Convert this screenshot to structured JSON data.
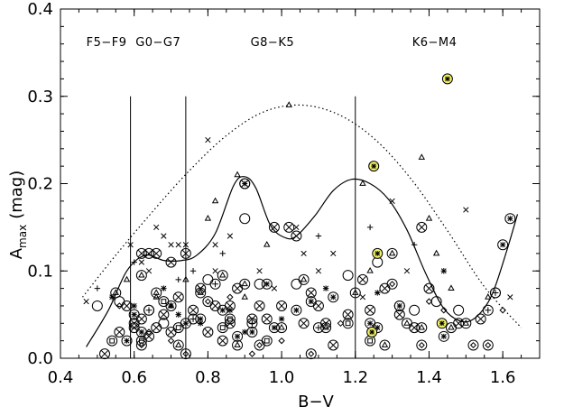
{
  "chart_data": {
    "type": "scatter",
    "title": "",
    "xlabel": "B−V",
    "ylabel_main": "A",
    "ylabel_sub": "max",
    "ylabel_unit": "(mag)",
    "xlim": [
      0.4,
      1.7
    ],
    "ylim": [
      0.0,
      0.4
    ],
    "xticks": [
      0.4,
      0.6,
      0.8,
      1.0,
      1.2,
      1.4,
      1.6
    ],
    "xtick_labels": [
      "0.4",
      "0.6",
      "0.8",
      "1.0",
      "1.2",
      "1.4",
      "1.6"
    ],
    "yticks": [
      0.0,
      0.1,
      0.2,
      0.3,
      0.4
    ],
    "ytick_labels": [
      "0.0",
      "0.1",
      "0.2",
      "0.3",
      "0.4"
    ],
    "grid": false,
    "class_boundaries": [
      0.59,
      0.74,
      1.2
    ],
    "boundary_top": 0.3,
    "spectral_classes": [
      {
        "label": "F5−F9",
        "x": 0.525
      },
      {
        "label": "G0−G7",
        "x": 0.665
      },
      {
        "label": "G8−K5",
        "x": 0.975
      },
      {
        "label": "K6−M4",
        "x": 1.415
      }
    ],
    "envelope_curve": {
      "style": "dotted",
      "x": [
        0.46,
        0.55,
        0.65,
        0.75,
        0.85,
        0.95,
        1.05,
        1.15,
        1.25,
        1.35,
        1.45,
        1.55,
        1.65
      ],
      "y": [
        0.07,
        0.118,
        0.168,
        0.215,
        0.255,
        0.282,
        0.29,
        0.28,
        0.252,
        0.206,
        0.146,
        0.082,
        0.035
      ]
    },
    "fit_curve": {
      "style": "solid",
      "x": [
        0.47,
        0.53,
        0.58,
        0.63,
        0.68,
        0.73,
        0.77,
        0.82,
        0.87,
        0.9,
        0.93,
        0.97,
        1.01,
        1.04,
        1.09,
        1.14,
        1.19,
        1.24,
        1.29,
        1.34,
        1.39,
        1.44,
        1.49,
        1.53,
        1.57,
        1.61,
        1.64
      ],
      "y": [
        0.013,
        0.055,
        0.1,
        0.118,
        0.112,
        0.112,
        0.118,
        0.143,
        0.198,
        0.208,
        0.195,
        0.152,
        0.138,
        0.14,
        0.163,
        0.192,
        0.205,
        0.2,
        0.182,
        0.147,
        0.098,
        0.057,
        0.042,
        0.048,
        0.072,
        0.122,
        0.165
      ]
    },
    "series": [
      {
        "marker": "circled-cross",
        "points": [
          [
            0.52,
            0.005
          ],
          [
            0.56,
            0.03
          ],
          [
            0.58,
            0.06
          ],
          [
            0.6,
            0.035
          ],
          [
            0.62,
            0.045
          ],
          [
            0.64,
            0.025
          ],
          [
            0.66,
            0.035
          ],
          [
            0.68,
            0.05
          ],
          [
            0.7,
            0.03
          ],
          [
            0.72,
            0.07
          ],
          [
            0.74,
            0.12
          ],
          [
            0.76,
            0.055
          ],
          [
            0.78,
            0.08
          ],
          [
            0.8,
            0.03
          ],
          [
            0.82,
            0.06
          ],
          [
            0.84,
            0.02
          ],
          [
            0.86,
            0.04
          ],
          [
            0.88,
            0.08
          ],
          [
            0.9,
            0.2
          ],
          [
            0.92,
            0.045
          ],
          [
            0.96,
            0.045
          ],
          [
            0.98,
            0.15
          ],
          [
            1.0,
            0.06
          ],
          [
            1.02,
            0.15
          ],
          [
            1.04,
            0.14
          ],
          [
            1.06,
            0.04
          ],
          [
            1.1,
            0.06
          ],
          [
            1.12,
            0.04
          ],
          [
            1.14,
            0.015
          ],
          [
            1.18,
            0.05
          ],
          [
            1.22,
            0.09
          ],
          [
            1.24,
            0.055
          ],
          [
            1.28,
            0.08
          ],
          [
            1.32,
            0.05
          ],
          [
            1.36,
            0.035
          ],
          [
            1.38,
            0.15
          ],
          [
            1.4,
            0.08
          ],
          [
            1.48,
            0.04
          ],
          [
            1.54,
            0.045
          ],
          [
            0.62,
            0.12
          ],
          [
            0.64,
            0.12
          ],
          [
            0.66,
            0.12
          ],
          [
            0.6,
            0.04
          ],
          [
            0.7,
            0.11
          ],
          [
            0.86,
            0.06
          ],
          [
            0.94,
            0.06
          ],
          [
            1.08,
            0.075
          ]
        ]
      },
      {
        "marker": "circled-asterisk",
        "points": [
          [
            0.58,
            0.02
          ],
          [
            0.6,
            0.05
          ],
          [
            0.62,
            0.03
          ],
          [
            0.7,
            0.06
          ],
          [
            0.74,
            0.04
          ],
          [
            0.78,
            0.045
          ],
          [
            0.84,
            0.055
          ],
          [
            0.88,
            0.025
          ],
          [
            0.92,
            0.03
          ],
          [
            0.98,
            0.035
          ],
          [
            1.04,
            0.055
          ],
          [
            1.14,
            0.07
          ],
          [
            1.26,
            0.035
          ],
          [
            1.32,
            0.06
          ],
          [
            1.44,
            0.025
          ],
          [
            1.6,
            0.13
          ],
          [
            1.62,
            0.16
          ],
          [
            0.9,
            0.2
          ],
          [
            0.96,
            0.085
          ],
          [
            1.08,
            0.065
          ],
          [
            1.24,
            0.04
          ]
        ]
      },
      {
        "marker": "circled-triangle",
        "points": [
          [
            0.55,
            0.075
          ],
          [
            0.62,
            0.095
          ],
          [
            0.66,
            0.075
          ],
          [
            0.72,
            0.015
          ],
          [
            0.78,
            0.075
          ],
          [
            0.84,
            0.095
          ],
          [
            0.88,
            0.015
          ],
          [
            1.0,
            0.035
          ],
          [
            1.12,
            0.035
          ],
          [
            1.28,
            0.015
          ],
          [
            1.3,
            0.12
          ],
          [
            1.34,
            0.04
          ],
          [
            1.38,
            0.035
          ],
          [
            1.46,
            0.035
          ],
          [
            1.5,
            0.04
          ],
          [
            0.9,
            0.085
          ],
          [
            1.2,
            0.075
          ],
          [
            1.06,
            0.09
          ]
        ]
      },
      {
        "marker": "circled-square",
        "points": [
          [
            0.54,
            0.02
          ],
          [
            0.62,
            0.02
          ],
          [
            0.72,
            0.035
          ],
          [
            0.86,
            0.045
          ],
          [
            0.96,
            0.02
          ],
          [
            1.18,
            0.04
          ],
          [
            1.24,
            0.02
          ],
          [
            0.68,
            0.065
          ],
          [
            0.84,
            0.035
          ]
        ]
      },
      {
        "marker": "circled-diamond",
        "points": [
          [
            0.62,
            0.015
          ],
          [
            0.74,
            0.005
          ],
          [
            0.8,
            0.065
          ],
          [
            0.94,
            0.015
          ],
          [
            1.08,
            0.005
          ],
          [
            1.3,
            0.085
          ],
          [
            1.38,
            0.015
          ],
          [
            1.52,
            0.015
          ],
          [
            1.56,
            0.015
          ]
        ]
      },
      {
        "marker": "circled-plus",
        "points": [
          [
            0.64,
            0.055
          ],
          [
            0.76,
            0.045
          ],
          [
            0.82,
            0.085
          ],
          [
            0.92,
            0.04
          ],
          [
            1.1,
            0.035
          ],
          [
            1.56,
            0.055
          ],
          [
            1.58,
            0.075
          ]
        ]
      },
      {
        "marker": "circle",
        "points": [
          [
            0.5,
            0.06
          ],
          [
            0.56,
            0.065
          ],
          [
            0.64,
            0.055
          ],
          [
            0.68,
            0.04
          ],
          [
            0.8,
            0.09
          ],
          [
            0.9,
            0.16
          ],
          [
            0.94,
            0.085
          ],
          [
            1.04,
            0.085
          ],
          [
            1.18,
            0.095
          ],
          [
            1.36,
            0.055
          ],
          [
            1.42,
            0.065
          ],
          [
            1.48,
            0.055
          ],
          [
            1.58,
            0.075
          ],
          [
            1.26,
            0.11
          ],
          [
            1.32,
            0.06
          ]
        ]
      },
      {
        "marker": "cross",
        "points": [
          [
            0.47,
            0.065
          ],
          [
            0.59,
            0.13
          ],
          [
            0.62,
            0.11
          ],
          [
            0.66,
            0.15
          ],
          [
            0.68,
            0.14
          ],
          [
            0.7,
            0.13
          ],
          [
            0.72,
            0.13
          ],
          [
            0.74,
            0.13
          ],
          [
            0.8,
            0.25
          ],
          [
            0.82,
            0.13
          ],
          [
            0.86,
            0.14
          ],
          [
            0.94,
            0.1
          ],
          [
            0.98,
            0.08
          ],
          [
            1.04,
            0.15
          ],
          [
            1.06,
            0.12
          ],
          [
            1.1,
            0.1
          ],
          [
            1.14,
            0.12
          ],
          [
            1.22,
            0.07
          ],
          [
            1.3,
            0.18
          ],
          [
            1.34,
            0.1
          ],
          [
            1.5,
            0.17
          ],
          [
            1.62,
            0.07
          ],
          [
            0.64,
            0.1
          ],
          [
            0.78,
            0.08
          ],
          [
            0.82,
            0.1
          ]
        ]
      },
      {
        "marker": "plus",
        "points": [
          [
            0.5,
            0.08
          ],
          [
            0.72,
            0.09
          ],
          [
            0.84,
            0.12
          ],
          [
            1.1,
            0.14
          ],
          [
            1.24,
            0.15
          ],
          [
            1.36,
            0.13
          ],
          [
            0.6,
            0.11
          ],
          [
            0.76,
            0.1
          ]
        ]
      },
      {
        "marker": "triangle",
        "points": [
          [
            0.58,
            0.09
          ],
          [
            0.66,
            0.07
          ],
          [
            0.7,
            0.06
          ],
          [
            0.74,
            0.09
          ],
          [
            0.82,
            0.18
          ],
          [
            0.88,
            0.21
          ],
          [
            0.96,
            0.13
          ],
          [
            1.02,
            0.29
          ],
          [
            1.22,
            0.2
          ],
          [
            1.24,
            0.1
          ],
          [
            1.38,
            0.23
          ],
          [
            1.4,
            0.16
          ],
          [
            1.42,
            0.12
          ],
          [
            1.46,
            0.08
          ],
          [
            1.56,
            0.07
          ],
          [
            0.8,
            0.16
          ],
          [
            0.9,
            0.07
          ]
        ]
      },
      {
        "marker": "diamond",
        "points": [
          [
            0.56,
            0.06
          ],
          [
            0.64,
            0.03
          ],
          [
            0.7,
            0.02
          ],
          [
            0.92,
            0.005
          ],
          [
            1.0,
            0.02
          ],
          [
            1.16,
            0.04
          ],
          [
            1.4,
            0.065
          ],
          [
            1.44,
            0.055
          ],
          [
            1.6,
            0.055
          ],
          [
            0.86,
            0.07
          ]
        ]
      },
      {
        "marker": "asterisk",
        "points": [
          [
            0.54,
            0.07
          ],
          [
            0.6,
            0.06
          ],
          [
            0.68,
            0.08
          ],
          [
            0.78,
            0.04
          ],
          [
            0.86,
            0.055
          ],
          [
            0.9,
            0.03
          ],
          [
            1.0,
            0.045
          ],
          [
            1.12,
            0.08
          ],
          [
            1.26,
            0.075
          ],
          [
            1.44,
            0.1
          ],
          [
            0.72,
            0.05
          ]
        ]
      },
      {
        "marker": "highlighted",
        "points": [
          [
            1.45,
            0.32
          ],
          [
            1.25,
            0.22
          ],
          [
            1.26,
            0.12
          ],
          [
            1.245,
            0.03
          ],
          [
            1.435,
            0.04
          ]
        ]
      }
    ]
  }
}
